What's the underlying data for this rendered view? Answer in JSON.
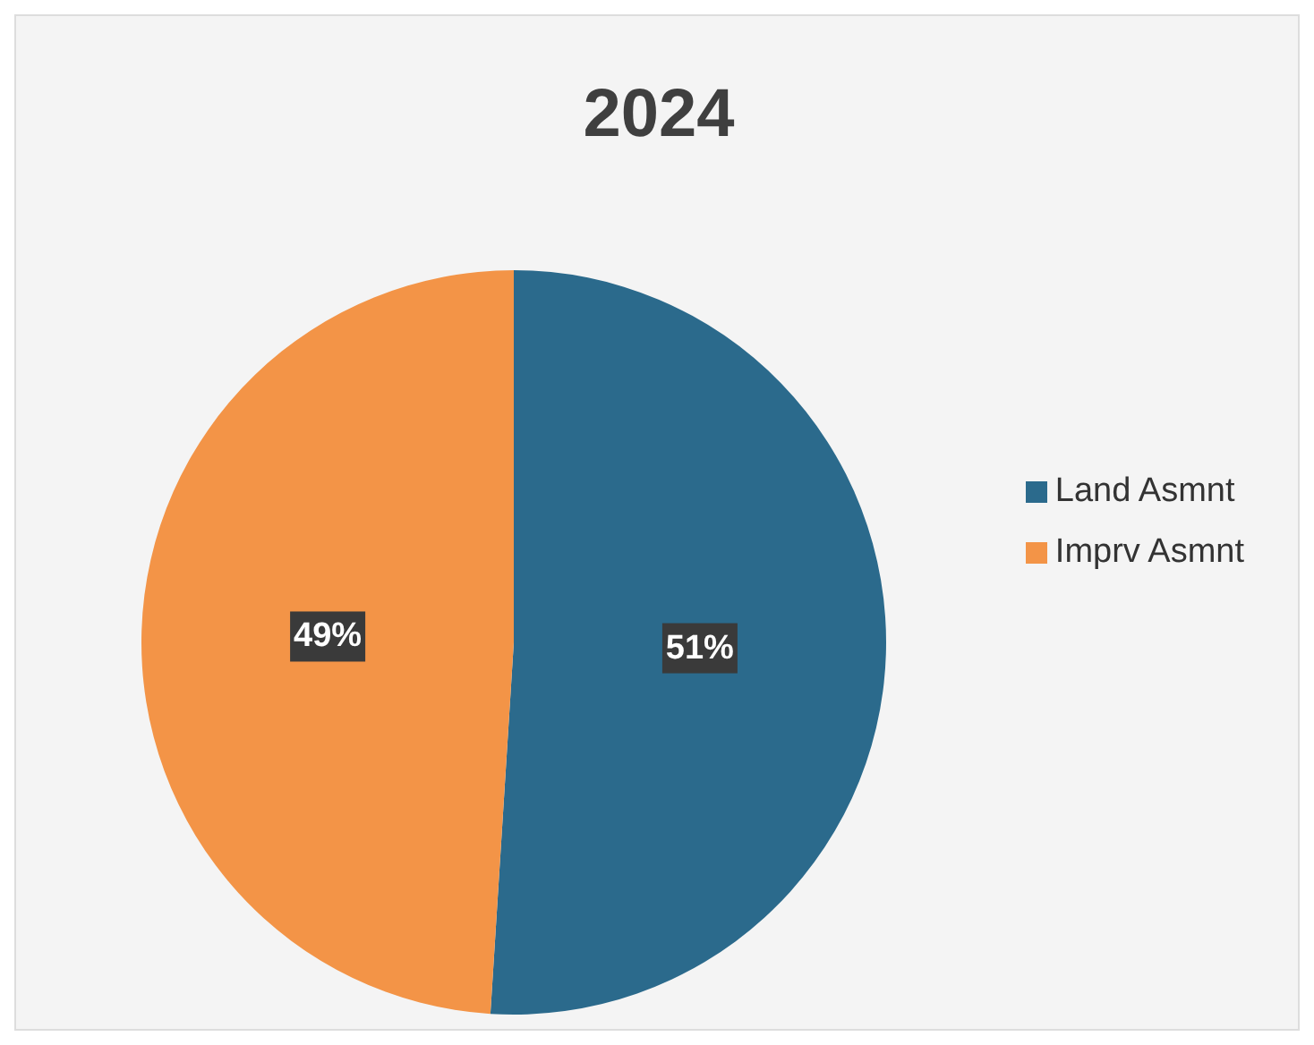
{
  "chart_data": {
    "type": "pie",
    "title": "2024",
    "categories": [
      "Land Asmnt",
      "Imprv Asmnt"
    ],
    "values": [
      51,
      49
    ],
    "colors": [
      "#2b6a8c",
      "#f39447"
    ],
    "value_labels": [
      "51%",
      "49%"
    ],
    "legend": "right"
  }
}
